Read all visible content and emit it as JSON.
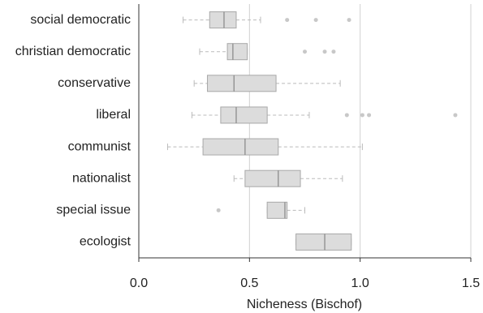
{
  "chart_data": {
    "type": "boxplot",
    "orientation": "horizontal",
    "x_label": "Nicheness (Bischof)",
    "categories": [
      "social democratic",
      "christian democratic",
      "conservative",
      "liberal",
      "communist",
      "nationalist",
      "special issue",
      "ecologist"
    ],
    "boxes": [
      {
        "low": 0.2,
        "q1": 0.32,
        "median": 0.385,
        "q3": 0.44,
        "high": 0.55,
        "outliers": [
          0.67,
          0.8,
          0.95
        ]
      },
      {
        "low": 0.275,
        "q1": 0.4,
        "median": 0.425,
        "q3": 0.49,
        "high": 0.49,
        "outliers": [
          0.75,
          0.84,
          0.88
        ]
      },
      {
        "low": 0.25,
        "q1": 0.31,
        "median": 0.43,
        "q3": 0.62,
        "high": 0.91,
        "outliers": []
      },
      {
        "low": 0.24,
        "q1": 0.37,
        "median": 0.44,
        "q3": 0.58,
        "high": 0.77,
        "outliers": [
          0.94,
          1.01,
          1.04,
          1.43
        ]
      },
      {
        "low": 0.13,
        "q1": 0.29,
        "median": 0.48,
        "q3": 0.63,
        "high": 1.01,
        "outliers": []
      },
      {
        "low": 0.43,
        "q1": 0.48,
        "median": 0.63,
        "q3": 0.73,
        "high": 0.92,
        "outliers": []
      },
      {
        "low": 0.58,
        "q1": 0.58,
        "median": 0.66,
        "q3": 0.67,
        "high": 0.75,
        "outliers": [
          0.36
        ]
      },
      {
        "low": 0.71,
        "q1": 0.71,
        "median": 0.84,
        "q3": 0.96,
        "high": 0.96,
        "outliers": []
      }
    ],
    "color": "#dcdcdc",
    "xlim": [
      0,
      1.5
    ],
    "xticks": [
      {
        "value": 0,
        "label": "0.0"
      },
      0.5,
      {
        "value": 1,
        "label": "1.0"
      },
      1.5
    ],
    "grid": true
  }
}
